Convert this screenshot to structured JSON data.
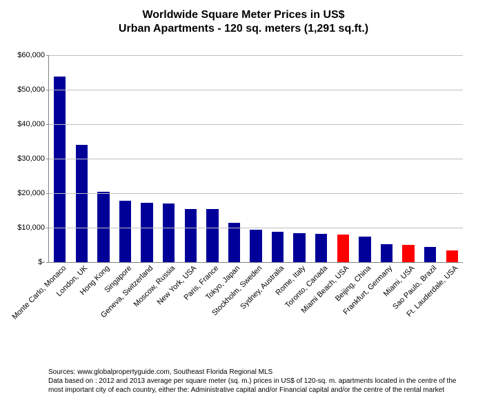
{
  "chart": {
    "type": "bar",
    "title": "Worldwide Square Meter Prices in US$",
    "subtitle": "Urban Apartments - 120 sq. meters (1,291 sq.ft.)",
    "title_fontsize": 16,
    "label_fontsize": 11,
    "background_color": "#ffffff",
    "grid_color": "#bfbfbf",
    "axis_color": "#808080",
    "bar_default_color": "#000099",
    "bar_highlight_color": "#ff0000",
    "bar_width_ratio": 0.55,
    "ylim": [
      0,
      60000
    ],
    "ytick_step": 10000,
    "ytick_labels": [
      "$-",
      "$10,000",
      "$20,000",
      "$30,000",
      "$40,000",
      "$50,000",
      "$60,000"
    ],
    "categories": [
      "Monte Carlo, Monaco",
      "London, UK",
      "Hong Kong",
      "Singapore",
      "Geneva, Switzerland",
      "Moscow, Russia",
      "New York, USA",
      "Paris, France",
      "Tokyo, Japan",
      "Stockholm, Sweden",
      "Sydney, Australia",
      "Rome, Italy",
      "Toronto, Canada",
      "Miami Beach, USA",
      "Beijing, China",
      "Frankfurt, Germany",
      "Miami, USA",
      "Sao Paulo, Brazil",
      "Ft. Lauderdale, USA"
    ],
    "values": [
      53800,
      34000,
      20500,
      17800,
      17300,
      17000,
      15500,
      15500,
      11500,
      9500,
      8800,
      8500,
      8300,
      8000,
      7400,
      5300,
      5000,
      4500,
      3500
    ],
    "bar_colors": [
      "#000099",
      "#000099",
      "#000099",
      "#000099",
      "#000099",
      "#000099",
      "#000099",
      "#000099",
      "#000099",
      "#000099",
      "#000099",
      "#000099",
      "#000099",
      "#ff0000",
      "#000099",
      "#000099",
      "#ff0000",
      "#000099",
      "#ff0000"
    ],
    "sources_line1": "Sources: www.globalpropertyguide.com, Southeast Florida Regional MLS",
    "sources_line2": "Data based on :  2012 and 2013 average per square meter (sq. m.) prices in US$ of 120-sq. m. apartments located in the centre of the most important city of each country, either the: Administrative capital and/or Financial capital and/or the centre of the rental market"
  }
}
